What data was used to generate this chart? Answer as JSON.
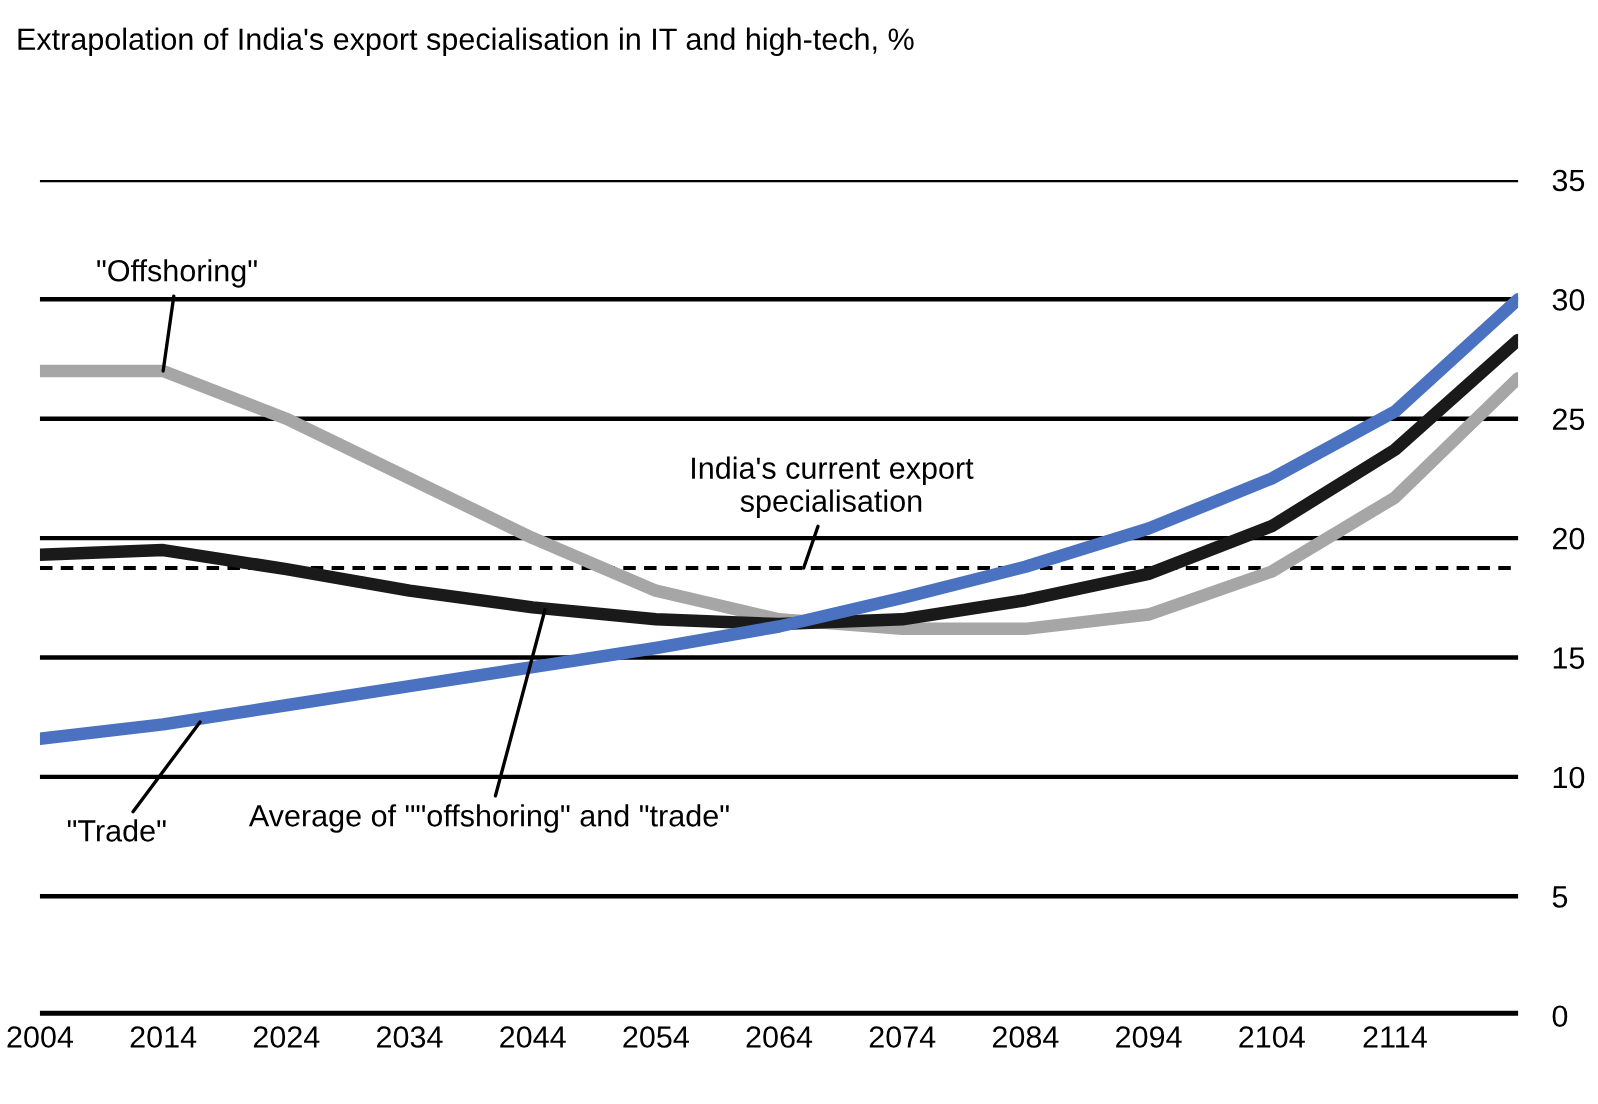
{
  "chart_data": {
    "type": "line",
    "title": "Extrapolation of India's export specialisation in IT and high-tech, %",
    "x": [
      2004,
      2014,
      2024,
      2034,
      2044,
      2054,
      2064,
      2074,
      2084,
      2094,
      2104,
      2114,
      2124
    ],
    "series": [
      {
        "color": "#a6a6a6",
        "values": [
          27.0,
          27.0,
          25.0,
          22.5,
          20.0,
          17.8,
          16.6,
          16.2,
          16.2,
          16.8,
          18.6,
          21.7,
          26.7
        ]
      },
      {
        "color": "#1a1a1a",
        "values": [
          19.3,
          19.5,
          18.7,
          17.8,
          17.1,
          16.6,
          16.4,
          16.6,
          17.4,
          18.5,
          20.5,
          23.7,
          28.3
        ]
      },
      {
        "color": "#4a72c0",
        "values": [
          11.6,
          12.2,
          13.0,
          13.8,
          14.6,
          15.4,
          16.3,
          17.5,
          18.8,
          20.4,
          22.5,
          25.3,
          30.0
        ]
      }
    ],
    "ref_lines": [
      {
        "axis": "y",
        "value": 18.75,
        "color": "#000000",
        "line_style": "dashed"
      }
    ],
    "annotations": [
      {
        "text": "\"Offshoring\"",
        "x": 2014,
        "y": 27.0
      },
      {
        "text": "India's current export\nspecialisation",
        "x": 2066,
        "y": 18.75
      },
      {
        "text": "\"Trade\"",
        "x": 2017,
        "y": 12.3
      },
      {
        "text": "Average of \"\"offshoring\" and \"trade\"",
        "x": 2045,
        "y": 17.0
      }
    ],
    "xlim": [
      2004,
      2124
    ],
    "xticks": [
      2004,
      2014,
      2024,
      2034,
      2044,
      2054,
      2064,
      2074,
      2084,
      2094,
      2104,
      2114
    ],
    "ylim": [
      0,
      35
    ],
    "yticks": [
      0,
      5,
      10,
      15,
      20,
      25,
      30,
      35
    ],
    "grid": "y",
    "marker": "none",
    "line_style": "solid",
    "legend": false
  }
}
